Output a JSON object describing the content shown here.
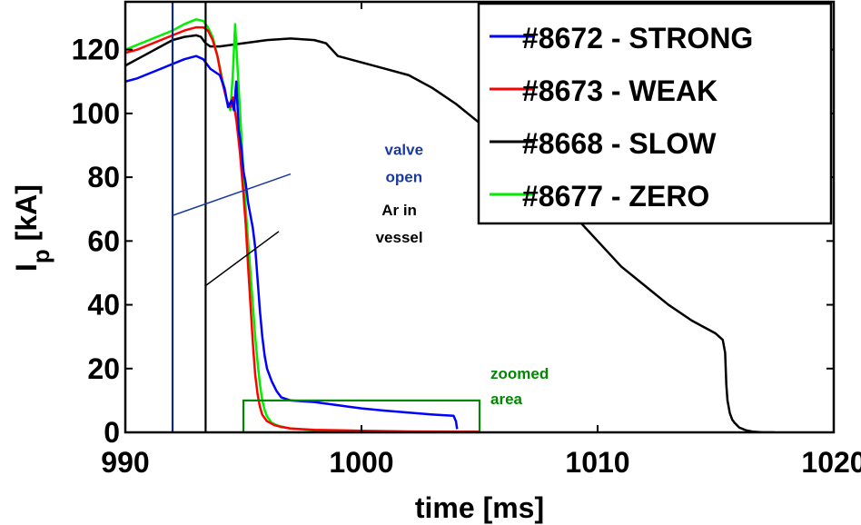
{
  "chart_data": {
    "type": "line",
    "title": "",
    "xlabel": "time [ms]",
    "ylabel_main": "I",
    "ylabel_sub": "p",
    "ylabel_unit": " [kA]",
    "xlim": [
      990,
      1020
    ],
    "ylim": [
      0,
      135
    ],
    "xticks": [
      990,
      1000,
      1010,
      1020
    ],
    "yticks": [
      0,
      20,
      40,
      60,
      80,
      100,
      120
    ],
    "legend_position": "top-right",
    "series": [
      {
        "name": "#8672 - STRONG",
        "color": "#0000ff",
        "x": [
          990.0,
          990.5,
          991.0,
          991.5,
          992.0,
          992.5,
          993.0,
          993.3,
          993.6,
          993.8,
          994.0,
          994.2,
          994.35,
          994.5,
          994.6,
          994.7,
          994.8,
          994.9,
          995.0,
          995.1,
          995.2,
          995.3,
          995.4,
          995.5,
          995.6,
          995.7,
          995.8,
          995.9,
          996.0,
          996.2,
          996.4,
          996.6,
          997.0,
          998.0,
          999.0,
          1000.0,
          1001.0,
          1002.0,
          1003.0,
          1003.9,
          1004.0,
          1004.05
        ],
        "y": [
          110,
          111,
          112.5,
          114,
          115.5,
          117,
          118,
          117,
          114,
          113,
          112,
          108,
          102,
          104,
          101,
          110,
          95,
          90,
          82,
          78,
          72,
          68,
          64,
          58,
          48,
          38,
          30,
          24,
          20,
          16,
          13,
          11,
          10,
          9.5,
          8.5,
          7.5,
          6.8,
          6.2,
          5.6,
          5.2,
          3.5,
          1.0
        ]
      },
      {
        "name": "#8673 - WEAK",
        "color": "#ff0000",
        "x": [
          990.0,
          990.5,
          991.0,
          991.5,
          992.0,
          992.5,
          993.0,
          993.3,
          993.5,
          993.7,
          993.9,
          994.1,
          994.3,
          994.45,
          994.55,
          994.7,
          994.85,
          995.0,
          995.1,
          995.2,
          995.3,
          995.4,
          995.5,
          995.6,
          995.7,
          995.8,
          996.0,
          996.3,
          996.6,
          997.0,
          998.0,
          1000.0,
          1002.0,
          1004.0,
          1005.0
        ],
        "y": [
          119,
          120,
          121.5,
          123,
          124.5,
          126,
          127,
          127,
          126,
          123,
          118,
          110,
          104,
          102,
          105,
          98,
          88,
          75,
          65,
          52,
          40,
          28,
          18,
          12,
          8,
          5.5,
          3.5,
          2.3,
          1.7,
          1.2,
          0.8,
          0.5,
          0.3,
          0.2,
          0.2
        ]
      },
      {
        "name": "#8668 - SLOW",
        "color": "#000000",
        "x": [
          990.0,
          990.5,
          991.0,
          991.5,
          992.0,
          992.5,
          993.0,
          993.2,
          993.4,
          993.6,
          994.0,
          995.0,
          996.0,
          997.0,
          998.0,
          998.5,
          999.0,
          1000.0,
          1001.0,
          1002.0,
          1003.0,
          1004.0,
          1005.0,
          1006.0,
          1007.0,
          1008.0,
          1009.0,
          1010.0,
          1011.0,
          1012.0,
          1013.0,
          1014.0,
          1014.5,
          1015.0,
          1015.3,
          1015.4,
          1015.45,
          1015.5,
          1015.6,
          1015.7,
          1015.8,
          1016.0,
          1016.3,
          1016.6,
          1017.0,
          1017.5
        ],
        "y": [
          115,
          117,
          119,
          121,
          123,
          124,
          124.5,
          124,
          122,
          121,
          121,
          122,
          123,
          123.5,
          123,
          122,
          118,
          116,
          114,
          112,
          108,
          103,
          97,
          90,
          82,
          75,
          68,
          60,
          52,
          46,
          40,
          35,
          33,
          31,
          29,
          25,
          15,
          10,
          6,
          4,
          3,
          1.5,
          0.6,
          0.2,
          0.0,
          0.0
        ]
      },
      {
        "name": "#8677 - ZERO",
        "color": "#00ee00",
        "x": [
          990.0,
          990.5,
          991.0,
          991.5,
          992.0,
          992.5,
          993.0,
          993.3,
          993.5,
          993.7,
          993.9,
          994.1,
          994.3,
          994.45,
          994.55,
          994.65,
          994.8,
          994.9,
          995.0,
          995.1,
          995.2,
          995.3,
          995.4,
          995.5,
          995.6,
          995.7,
          995.8,
          995.9,
          996.0,
          996.2,
          996.5,
          997.0,
          998.0,
          1000.0,
          1002.0,
          1004.0,
          1005.0
        ],
        "y": [
          120,
          121.5,
          123,
          124.5,
          126,
          128,
          129.5,
          129,
          127,
          124,
          118,
          111,
          104,
          101,
          112,
          128,
          108,
          95,
          82,
          70,
          60,
          50,
          40,
          30,
          22,
          15,
          10,
          7,
          5,
          3,
          2,
          1.2,
          0.6,
          0.3,
          0.2,
          0.1,
          0.1
        ]
      }
    ],
    "vertical_markers": [
      {
        "name": "valve-marker",
        "x": 992.0,
        "color": "#0a2a8a"
      },
      {
        "name": "ar-marker",
        "x": 993.4,
        "color": "#000000"
      }
    ],
    "annotations": [
      {
        "name": "valve-open-annotation",
        "lines": [
          "valve",
          "open"
        ],
        "color": "#1a3aa0",
        "text_x": 1001.8,
        "text_y_top": 87,
        "pointer_from": [
          992.0,
          68
        ],
        "pointer_to": [
          997.0,
          81
        ]
      },
      {
        "name": "ar-in-vessel-annotation",
        "lines": [
          "Ar in",
          "vessel"
        ],
        "color": "#000000",
        "text_x": 1001.6,
        "text_y_top": 68,
        "pointer_from": [
          993.4,
          46
        ],
        "pointer_to": [
          996.5,
          63
        ]
      }
    ],
    "zoom_box": {
      "name": "zoomed-area-box",
      "x": [
        995.0,
        1005.0
      ],
      "y": [
        0.0,
        10.0
      ],
      "color": "#008800",
      "label_lines": [
        "zoomed",
        "area"
      ]
    }
  }
}
